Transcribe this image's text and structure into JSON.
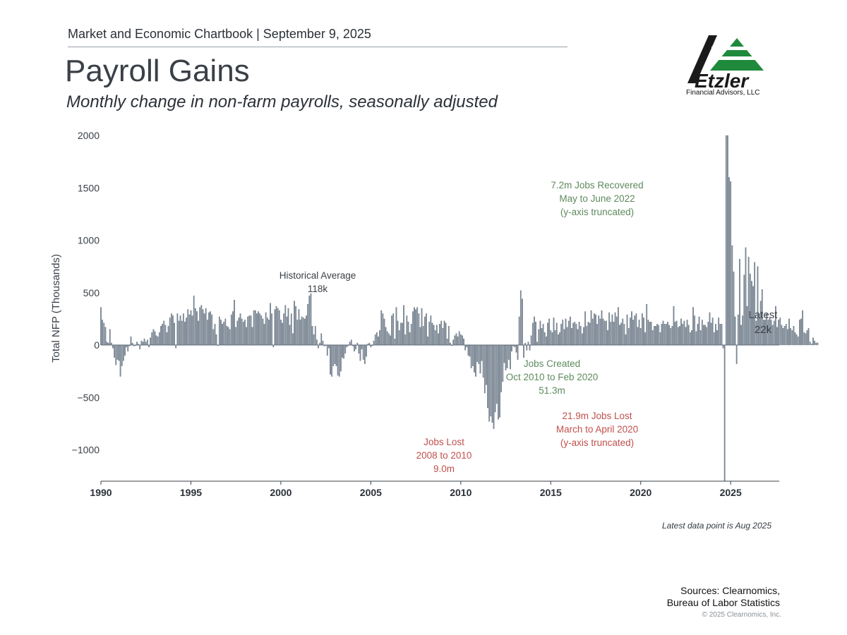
{
  "header": {
    "chartbook_line": "Market and Economic Chartbook | September 9, 2025",
    "title": "Payroll Gains",
    "subtitle": "Monthly change in non-farm payrolls, seasonally adjusted"
  },
  "logo": {
    "name": "Etzler",
    "tagline": "Financial Advisors, LLC"
  },
  "colors": {
    "bar": "#7d8a98",
    "bar_stroke": "#5f6b78",
    "green_note": "#5e8a5e",
    "red_note": "#c0504d",
    "dark_note": "#3a4047"
  },
  "chart_data": {
    "type": "bar",
    "title": "Payroll Gains",
    "ylabel": "Total NFP (Thousands)",
    "xlabel": "",
    "ylim": [
      -1300,
      2000
    ],
    "xlim": [
      1990,
      2027.7
    ],
    "y_ticks": [
      2000,
      1500,
      1000,
      500,
      0,
      -500,
      -1000
    ],
    "y_tick_labels": [
      "2000",
      "1500",
      "1000",
      "500",
      "0",
      "−500",
      "−1000"
    ],
    "x_ticks": [
      1990,
      1995,
      2000,
      2005,
      2010,
      2015,
      2020,
      2025
    ],
    "x_tick_labels": [
      "1990",
      "1995",
      "2000",
      "2005",
      "2010",
      "2015",
      "2020",
      "2025"
    ],
    "start_year": 1990,
    "series": [
      {
        "name": "Total NFP",
        "segments": [
          {
            "from": "1990-01",
            "values": [
              360,
              240,
              210,
              170,
              30,
              20,
              150,
              20,
              -30,
              -120,
              -190,
              -140
            ]
          },
          {
            "from": "1991-01",
            "values": [
              -150,
              -300,
              -200,
              -150,
              -100,
              -20,
              -60,
              -10,
              80,
              20,
              -10,
              0
            ]
          },
          {
            "from": "1992-01",
            "values": [
              30,
              10,
              -40,
              40,
              30,
              60,
              30,
              50,
              -20,
              70,
              120,
              150
            ]
          },
          {
            "from": "1993-01",
            "values": [
              130,
              90,
              80,
              120,
              180,
              200,
              230,
              190,
              120,
              180,
              260,
              300
            ]
          },
          {
            "from": "1994-01",
            "values": [
              280,
              210,
              -30,
              300,
              230,
              280,
              230,
              300,
              220,
              260,
              340,
              290
            ]
          },
          {
            "from": "1995-01",
            "values": [
              330,
              280,
              470,
              350,
              320,
              230,
              360,
              380,
              340,
              300,
              350,
              240
            ]
          },
          {
            "from": "1996-01",
            "values": [
              310,
              320,
              290,
              150,
              200,
              100,
              0,
              270,
              240,
              200,
              220,
              250
            ]
          },
          {
            "from": "1997-01",
            "values": [
              180,
              170,
              150,
              290,
              320,
              430,
              170,
              230,
              260,
              300,
              250,
              220
            ]
          },
          {
            "from": "1998-01",
            "values": [
              240,
              170,
              270,
              280,
              280,
              170,
              330,
              330,
              300,
              320,
              300,
              280
            ]
          },
          {
            "from": "1999-01",
            "values": [
              250,
              200,
              310,
              260,
              240,
              400,
              300,
              -20,
              340,
              370,
              350,
              330
            ]
          },
          {
            "from": "2000-01",
            "values": [
              240,
              210,
              300,
              380,
              270,
              350,
              190,
              300,
              110,
              420,
              370,
              240
            ]
          },
          {
            "from": "2001-01",
            "values": [
              340,
              240,
              270,
              260,
              250,
              280,
              390,
              470,
              490,
              180,
              100,
              180
            ]
          },
          {
            "from": "2002-01",
            "values": [
              50,
              -30,
              20,
              110,
              40,
              -10,
              0,
              -100,
              -30,
              -280,
              -300,
              -200
            ]
          },
          {
            "from": "2003-01",
            "values": [
              -180,
              -200,
              -290,
              -300,
              -250,
              -120,
              -130,
              -80,
              -20,
              0,
              30,
              50
            ]
          },
          {
            "from": "2004-01",
            "values": [
              -10,
              -60,
              -40,
              20,
              -80,
              -150,
              -40,
              -140,
              -180,
              -110,
              10,
              20
            ]
          },
          {
            "from": "2005-01",
            "values": [
              -20,
              0,
              40,
              100,
              120,
              80,
              140,
              330,
              300,
              250,
              170,
              130
            ]
          },
          {
            "from": "2006-01",
            "values": [
              110,
              90,
              280,
              300,
              60,
              360,
              230,
              140,
              210,
              210,
              380,
              100
            ]
          },
          {
            "from": "2007-01",
            "values": [
              280,
              220,
              120,
              200,
              320,
              360,
              340,
              360,
              300,
              170,
              350,
              180
            ]
          },
          {
            "from": "2008-01",
            "values": [
              270,
              300,
              80,
              220,
              280,
              210,
              190,
              140,
              190,
              110,
              200,
              230
            ]
          },
          {
            "from": "2009-01",
            "values": [
              160,
              230,
              210,
              60,
              180,
              20,
              0,
              50,
              90,
              110,
              80,
              130
            ]
          },
          {
            "from": "2010-01",
            "values": [
              100,
              90,
              60,
              -50,
              -20,
              -100,
              -110,
              -220,
              -200,
              -260,
              -300,
              -160
            ]
          },
          {
            "from": "2011-01",
            "values": [
              -180,
              -270,
              -150,
              -310,
              -460,
              -380,
              -600,
              -730,
              -680,
              -740,
              -800,
              -640
            ]
          },
          {
            "from": "2012-01",
            "values": [
              -560,
              -710,
              -690,
              -450,
              -350,
              -170,
              -240,
              -220,
              -140,
              -230,
              -60,
              -10
            ]
          },
          {
            "from": "2013-01",
            "values": [
              -20,
              -70,
              -140,
              270,
              520,
              440,
              -120,
              20,
              -50,
              30,
              -50,
              90
            ]
          },
          {
            "from": "2014-01",
            "values": [
              210,
              270,
              220,
              30,
              150,
              230,
              160,
              200,
              120,
              80,
              210,
              250
            ]
          },
          {
            "from": "2015-01",
            "values": [
              140,
              120,
              260,
              140,
              210,
              100,
              120,
              200,
              240,
              150,
              250,
              170
            ]
          },
          {
            "from": "2016-01",
            "values": [
              230,
              270,
              160,
              210,
              220,
              200,
              150,
              220,
              180,
              110,
              170,
              320
            ]
          },
          {
            "from": "2017-01",
            "values": [
              180,
              220,
              210,
              330,
              250,
              300,
              290,
              200,
              280,
              250,
              330,
              250
            ]
          },
          {
            "from": "2018-01",
            "values": [
              230,
              230,
              140,
              310,
              220,
              290,
              220,
              310,
              270,
              360,
              190,
              210
            ]
          },
          {
            "from": "2019-01",
            "values": [
              250,
              200,
              100,
              290,
              160,
              260,
              320,
              240,
              280,
              300,
              170,
              240
            ]
          },
          {
            "from": "2020-01",
            "values": [
              160,
              300,
              260,
              120,
              390,
              240,
              220,
              220,
              140,
              180,
              180,
              200
            ]
          },
          {
            "from": "2021-01",
            "values": [
              190,
              120,
              200,
              230,
              200,
              200,
              220,
              190,
              160,
              180,
              370,
              220
            ]
          },
          {
            "from": "2022-01",
            "values": [
              230,
              170,
              180,
              250,
              200,
              230,
              170,
              240,
              190,
              120,
              140,
              360
            ]
          },
          {
            "from": "2023-01",
            "values": [
              280,
              130,
              200,
              270,
              140,
              240,
              190,
              190,
              170,
              220,
              310,
              210
            ]
          },
          {
            "from": "2024-01",
            "values": [
              260,
              120,
              200,
              140,
              260,
              200,
              200,
              -30,
              -1300,
              2000,
              2000,
              1600
            ]
          },
          {
            "from": "2025-01",
            "values": [
              1560,
              950,
              700,
              270,
              -180,
              290,
              820,
              190,
              280,
              670,
              930,
              370
            ]
          },
          {
            "from": "2026-01",
            "values": [
              840,
              680,
              610,
              560,
              790,
              230,
              750,
              260,
              420,
              530,
              240,
              240
            ]
          },
          {
            "from": "2027-01",
            "values": [
              300,
              240,
              260,
              240,
              190,
              230,
              370,
              170,
              240,
              260,
              190,
              160
            ]
          },
          {
            "from": "2028-01",
            "values": [
              180,
              200,
              150,
              250,
              160,
              140,
              180,
              120,
              100,
              80,
              240,
              250
            ]
          },
          {
            "from": "2029-01",
            "values": [
              330,
              120,
              110,
              140,
              160,
              30,
              10,
              70,
              40,
              20,
              22
            ]
          }
        ]
      }
    ],
    "value_note": "values approximate; monthly bars Jan 1990 – Aug 2025",
    "annotations": [
      {
        "key": "historical_average",
        "lines": [
          "Historical Average",
          "118k"
        ],
        "color": "dark"
      },
      {
        "key": "recovered",
        "lines": [
          "7.2m Jobs Recovered",
          "May to June 2022",
          "(y-axis truncated)"
        ],
        "color": "green"
      },
      {
        "key": "jobs_created",
        "lines": [
          "Jobs Created",
          "Oct 2010 to Feb 2020",
          "51.3m"
        ],
        "color": "green"
      },
      {
        "key": "jobs_lost_gfc",
        "lines": [
          "Jobs Lost",
          "2008 to 2010",
          "9.0m"
        ],
        "color": "red"
      },
      {
        "key": "jobs_lost_covid",
        "lines": [
          "21.9m Jobs Lost",
          "March to April 2020",
          "(y-axis truncated)"
        ],
        "color": "red"
      },
      {
        "key": "latest",
        "lines": [
          "Latest",
          "22k"
        ],
        "color": "dark"
      }
    ]
  },
  "footer": {
    "latest_point": "Latest data point is Aug 2025",
    "sources_line1": "Sources: Clearnomics,",
    "sources_line2": "Bureau of Labor Statistics",
    "copyright": "© 2025 Clearnomics, Inc."
  }
}
